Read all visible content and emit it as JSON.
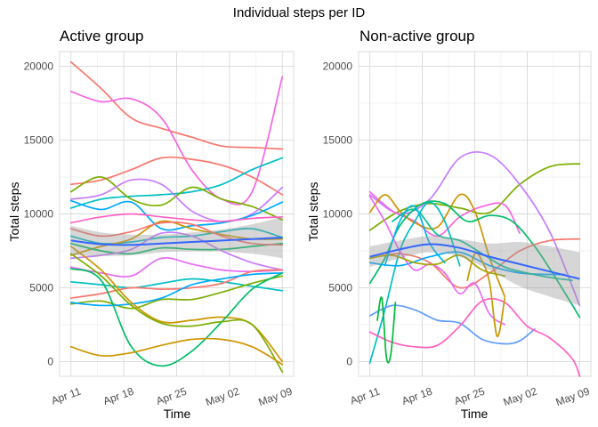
{
  "figure": {
    "title": "Individual steps per ID"
  },
  "chart_data": [
    {
      "type": "line",
      "title": "Active group",
      "xlabel": "Time",
      "ylabel": "Total steps",
      "x_ticks": [
        "Apr 11",
        "Apr 18",
        "Apr 25",
        "May 02",
        "May 09"
      ],
      "x_tick_days": [
        0,
        7,
        14,
        21,
        28
      ],
      "xlim_days": [
        -1.5,
        29.5
      ],
      "y_ticks": [
        "0",
        "5000",
        "10000",
        "15000",
        "20000"
      ],
      "y_tick_values": [
        0,
        5000,
        10000,
        15000,
        20000
      ],
      "ylim": [
        -1000,
        21000
      ],
      "grid": true,
      "x_day_offsets": [
        0,
        4,
        8,
        12,
        16,
        20,
        24,
        28
      ],
      "series": [
        {
          "color": "#f8766d",
          "values": [
            20300,
            18500,
            16500,
            15800,
            15200,
            14600,
            14500,
            14400
          ]
        },
        {
          "color": "#f564e3",
          "values": [
            18300,
            17600,
            17800,
            16500,
            13000,
            11000,
            11500,
            19300
          ]
        },
        {
          "color": "#f8766d",
          "values": [
            12000,
            12300,
            13000,
            13800,
            13700,
            13300,
            12500,
            11300
          ]
        },
        {
          "color": "#00bfc4",
          "values": [
            10400,
            11000,
            11200,
            11300,
            11500,
            12000,
            13000,
            13800
          ]
        },
        {
          "color": "#7cae00",
          "values": [
            11500,
            12500,
            11000,
            10600,
            11800,
            11000,
            10500,
            9600
          ]
        },
        {
          "color": "#c77cff",
          "values": [
            11000,
            11300,
            12300,
            12000,
            10200,
            9500,
            10000,
            11800
          ]
        },
        {
          "color": "#00a9ff",
          "values": [
            10900,
            10300,
            10800,
            9000,
            9200,
            9400,
            9900,
            10800
          ]
        },
        {
          "color": "#ff61c3",
          "values": [
            9400,
            9800,
            10000,
            9800,
            9600,
            9500,
            9700,
            9800
          ]
        },
        {
          "color": "#00bfc4",
          "values": [
            8500,
            8000,
            8100,
            8400,
            8500,
            8800,
            9000,
            8400
          ]
        },
        {
          "color": "#cd9600",
          "values": [
            7200,
            7800,
            8300,
            9500,
            9000,
            8600,
            8300,
            8300
          ]
        },
        {
          "color": "#00be67",
          "values": [
            8000,
            7500,
            7300,
            7700,
            7600,
            7600,
            7800,
            8000
          ]
        },
        {
          "color": "#c77cff",
          "values": [
            7000,
            7200,
            7600,
            8700,
            8500,
            7500,
            6700,
            6200
          ]
        },
        {
          "color": "#e76bf3",
          "values": [
            6400,
            6000,
            5800,
            7000,
            6600,
            6200,
            6100,
            6200
          ]
        },
        {
          "color": "#00bfc4",
          "values": [
            5400,
            5200,
            5000,
            5300,
            5600,
            5400,
            5100,
            4800
          ]
        },
        {
          "color": "#f8766d",
          "values": [
            4300,
            4600,
            5000,
            4900,
            5000,
            5300,
            6100,
            6200
          ]
        },
        {
          "color": "#7cae00",
          "values": [
            3900,
            4100,
            3600,
            4200,
            4200,
            4700,
            5300,
            5800
          ]
        },
        {
          "color": "#00a9ff",
          "values": [
            4000,
            3800,
            3900,
            4300,
            5200,
            5600,
            5900,
            6000
          ]
        },
        {
          "color": "#cd9600",
          "values": [
            7800,
            6200,
            4000,
            2700,
            2800,
            3000,
            2500,
            0
          ]
        },
        {
          "color": "#00be67",
          "values": [
            6300,
            5500,
            1000,
            -300,
            700,
            2700,
            4900,
            6000
          ]
        },
        {
          "color": "#7cae00",
          "values": [
            7300,
            5800,
            3800,
            2600,
            2400,
            2700,
            2500,
            -700
          ]
        },
        {
          "color": "#cd9600",
          "values": [
            1000,
            400,
            600,
            1100,
            1500,
            1500,
            1000,
            -200
          ]
        },
        {
          "color": "#f8766d",
          "values": [
            9000,
            8500,
            8800,
            9400,
            9300,
            8500,
            8000,
            7900
          ]
        }
      ],
      "smooth": {
        "color": "#3366ff",
        "values": [
          8200,
          7950,
          7900,
          8000,
          8100,
          8200,
          8300,
          8400
        ],
        "lower": [
          7200,
          7150,
          7200,
          7400,
          7450,
          7450,
          7300,
          7000
        ],
        "upper": [
          9200,
          8750,
          8600,
          8600,
          8750,
          8950,
          9300,
          9800
        ]
      }
    },
    {
      "type": "line",
      "title": "Non-active group",
      "xlabel": "Time",
      "ylabel": "Total steps",
      "x_ticks": [
        "Apr 11",
        "Apr 18",
        "Apr 25",
        "May 02",
        "May 09"
      ],
      "x_tick_days": [
        0,
        7,
        14,
        21,
        28
      ],
      "xlim_days": [
        -1.5,
        29.5
      ],
      "y_ticks": [
        "0",
        "5000",
        "10000",
        "15000",
        "20000"
      ],
      "y_tick_values": [
        0,
        5000,
        10000,
        15000,
        20000
      ],
      "ylim": [
        -1000,
        21000
      ],
      "grid": true,
      "series": [
        {
          "color": "#7cae00",
          "days": [
            0,
            4,
            8,
            12,
            16,
            20,
            24,
            28
          ],
          "values": [
            8900,
            10200,
            10700,
            10400,
            10100,
            12000,
            13200,
            13400
          ]
        },
        {
          "color": "#c77cff",
          "days": [
            0,
            4,
            8,
            12,
            16,
            20,
            24,
            28
          ],
          "values": [
            11300,
            10000,
            11000,
            13800,
            14000,
            12000,
            8800,
            3800
          ]
        },
        {
          "color": "#f564e3",
          "days": [
            0,
            3,
            6,
            9,
            12,
            15,
            18,
            20
          ],
          "values": [
            11500,
            10200,
            9500,
            8500,
            9800,
            10500,
            10600,
            8700
          ]
        },
        {
          "color": "#cd9600",
          "days": [
            0,
            2,
            4,
            6,
            9,
            12,
            14,
            16,
            18
          ],
          "values": [
            10100,
            11300,
            10200,
            9400,
            9100,
            11300,
            10200,
            7000,
            4400
          ]
        },
        {
          "color": "#00be67",
          "days": [
            0,
            2,
            4,
            7,
            10,
            13,
            16,
            19,
            22,
            25,
            28
          ],
          "values": [
            5300,
            7000,
            9200,
            10700,
            10700,
            9500,
            9900,
            9500,
            7800,
            5500,
            3000
          ]
        },
        {
          "color": "#00bfc4",
          "days": [
            0,
            2,
            4,
            6,
            8,
            10,
            12
          ],
          "values": [
            -100,
            3500,
            7500,
            9500,
            10800,
            9500,
            6500
          ]
        },
        {
          "color": "#f8766d",
          "days": [
            0,
            4,
            8,
            12,
            16,
            20,
            24,
            28
          ],
          "values": [
            7000,
            7300,
            6700,
            5000,
            6000,
            7500,
            8200,
            8300
          ]
        },
        {
          "color": "#00a9ff",
          "days": [
            0,
            4,
            8,
            12,
            16,
            20,
            24,
            26
          ],
          "values": [
            6700,
            6500,
            7100,
            7400,
            6500,
            6000,
            5900,
            5900
          ]
        },
        {
          "color": "#e76bf3",
          "days": [
            0,
            2,
            4,
            6,
            8,
            10,
            12,
            14,
            16,
            18
          ],
          "values": [
            11200,
            9500,
            7500,
            6200,
            6600,
            6000,
            4600,
            5300,
            3200,
            2500
          ]
        },
        {
          "color": "#a3a500",
          "days": [
            0,
            3,
            6,
            9,
            12,
            15,
            18
          ],
          "values": [
            7000,
            7200,
            6700,
            6600,
            7200,
            6200,
            5800
          ]
        },
        {
          "color": "#00c094",
          "days": [
            3,
            6,
            9,
            12,
            15,
            18,
            21,
            24,
            27
          ],
          "values": [
            9500,
            10300,
            8600,
            8200,
            7300,
            6400,
            6000,
            5700,
            5500
          ]
        },
        {
          "color": "#619cff",
          "days": [
            0,
            3,
            6,
            9,
            12,
            15,
            18,
            20,
            22
          ],
          "values": [
            3100,
            3800,
            3500,
            2800,
            2600,
            1500,
            1200,
            1400,
            2200
          ]
        },
        {
          "color": "#ff61c3",
          "days": [
            0,
            3,
            6,
            9,
            12,
            15,
            18,
            21,
            24,
            27,
            28
          ],
          "values": [
            2000,
            1300,
            1000,
            1100,
            2400,
            4100,
            4000,
            2400,
            1600,
            200,
            -1000
          ]
        },
        {
          "color": "#c49a00",
          "days": [
            13,
            14,
            15,
            16,
            17,
            18
          ],
          "values": [
            5500,
            7300,
            6800,
            5300,
            1700,
            4300
          ]
        },
        {
          "color": "#00ba38",
          "days": [
            1,
            1.6,
            2.2,
            2.8,
            3.4
          ],
          "values": [
            2800,
            4300,
            300,
            500,
            4000
          ]
        },
        {
          "color": "#00b4f0",
          "days": [
            2,
            4,
            6,
            8,
            10
          ],
          "values": [
            6500,
            9500,
            10500,
            8000,
            6700
          ]
        }
      ],
      "smooth": {
        "color": "#3366ff",
        "days": [
          0,
          4,
          8,
          12,
          16,
          20,
          24,
          28
        ],
        "values": [
          7100,
          7600,
          7950,
          7700,
          7100,
          6600,
          6100,
          5600
        ],
        "lower": [
          6400,
          7000,
          7400,
          7100,
          6200,
          5100,
          4400,
          3800
        ],
        "upper": [
          7800,
          8200,
          8500,
          8300,
          8000,
          8100,
          7800,
          7400
        ]
      }
    }
  ]
}
